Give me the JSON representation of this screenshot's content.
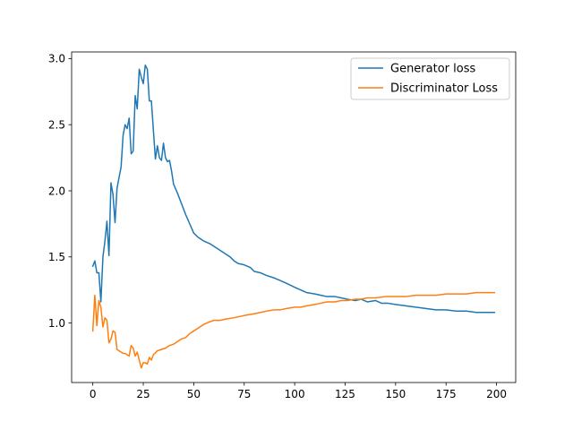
{
  "chart_data": {
    "type": "line",
    "title": "",
    "xlabel": "",
    "ylabel": "",
    "xlim": [
      -10.5,
      209.5
    ],
    "ylim": [
      0.55,
      3.05
    ],
    "x_ticks": [
      0,
      25,
      50,
      75,
      100,
      125,
      150,
      175,
      200
    ],
    "x_tick_labels": [
      "0",
      "25",
      "50",
      "75",
      "100",
      "125",
      "150",
      "175",
      "200"
    ],
    "y_ticks": [
      1.0,
      1.5,
      2.0,
      2.5,
      3.0
    ],
    "y_tick_labels": [
      "1.0",
      "1.5",
      "2.0",
      "2.5",
      "3.0"
    ],
    "grid": false,
    "legend_position": "top-right",
    "series": [
      {
        "name": "Generator loss",
        "color": "#1f77b4",
        "x": [
          0,
          1,
          2,
          3,
          4,
          5,
          6,
          7,
          8,
          9,
          10,
          11,
          12,
          13,
          14,
          15,
          16,
          17,
          18,
          19,
          20,
          21,
          22,
          23,
          24,
          25,
          26,
          27,
          28,
          29,
          30,
          31,
          32,
          33,
          34,
          35,
          36,
          37,
          38,
          39,
          40,
          42,
          44,
          46,
          48,
          50,
          52,
          55,
          58,
          60,
          62,
          65,
          68,
          70,
          72,
          75,
          78,
          80,
          83,
          86,
          90,
          93,
          96,
          100,
          103,
          106,
          110,
          113,
          116,
          120,
          123,
          126,
          130,
          133,
          136,
          140,
          143,
          146,
          150,
          155,
          160,
          165,
          170,
          175,
          180,
          185,
          190,
          195,
          199
        ],
        "y": [
          1.43,
          1.47,
          1.38,
          1.38,
          1.16,
          1.5,
          1.62,
          1.77,
          1.51,
          2.06,
          1.97,
          1.76,
          2.02,
          2.1,
          2.18,
          2.42,
          2.5,
          2.47,
          2.55,
          2.28,
          2.3,
          2.72,
          2.62,
          2.92,
          2.86,
          2.81,
          2.95,
          2.92,
          2.68,
          2.68,
          2.46,
          2.24,
          2.34,
          2.25,
          2.23,
          2.36,
          2.25,
          2.22,
          2.23,
          2.15,
          2.05,
          1.98,
          1.9,
          1.82,
          1.75,
          1.68,
          1.65,
          1.62,
          1.6,
          1.58,
          1.56,
          1.53,
          1.5,
          1.47,
          1.45,
          1.44,
          1.42,
          1.39,
          1.38,
          1.36,
          1.34,
          1.32,
          1.3,
          1.27,
          1.25,
          1.23,
          1.22,
          1.21,
          1.2,
          1.2,
          1.19,
          1.18,
          1.17,
          1.18,
          1.16,
          1.17,
          1.15,
          1.15,
          1.14,
          1.13,
          1.12,
          1.11,
          1.1,
          1.1,
          1.09,
          1.09,
          1.08,
          1.08,
          1.08
        ]
      },
      {
        "name": "Discriminator Loss",
        "color": "#ff7f0e",
        "x": [
          0,
          1,
          2,
          3,
          4,
          5,
          6,
          7,
          8,
          9,
          10,
          11,
          12,
          13,
          14,
          15,
          16,
          17,
          18,
          19,
          20,
          21,
          22,
          23,
          24,
          25,
          26,
          27,
          28,
          29,
          30,
          32,
          34,
          36,
          38,
          40,
          42,
          44,
          46,
          48,
          50,
          52,
          55,
          58,
          60,
          63,
          66,
          70,
          73,
          76,
          80,
          83,
          86,
          90,
          93,
          96,
          100,
          103,
          106,
          110,
          113,
          116,
          120,
          123,
          126,
          130,
          133,
          136,
          140,
          145,
          150,
          155,
          160,
          165,
          170,
          175,
          180,
          185,
          190,
          195,
          199
        ],
        "y": [
          0.94,
          1.21,
          0.98,
          1.17,
          1.12,
          0.97,
          1.04,
          1.02,
          0.85,
          0.88,
          0.94,
          0.93,
          0.8,
          0.79,
          0.78,
          0.77,
          0.77,
          0.76,
          0.75,
          0.83,
          0.81,
          0.75,
          0.78,
          0.72,
          0.66,
          0.7,
          0.7,
          0.69,
          0.74,
          0.72,
          0.76,
          0.79,
          0.8,
          0.81,
          0.83,
          0.84,
          0.86,
          0.88,
          0.89,
          0.92,
          0.94,
          0.96,
          0.99,
          1.01,
          1.02,
          1.02,
          1.03,
          1.04,
          1.05,
          1.06,
          1.07,
          1.08,
          1.09,
          1.1,
          1.1,
          1.11,
          1.12,
          1.12,
          1.13,
          1.14,
          1.15,
          1.16,
          1.16,
          1.17,
          1.17,
          1.18,
          1.18,
          1.19,
          1.19,
          1.2,
          1.2,
          1.2,
          1.21,
          1.21,
          1.21,
          1.22,
          1.22,
          1.22,
          1.23,
          1.23,
          1.23
        ]
      }
    ]
  }
}
